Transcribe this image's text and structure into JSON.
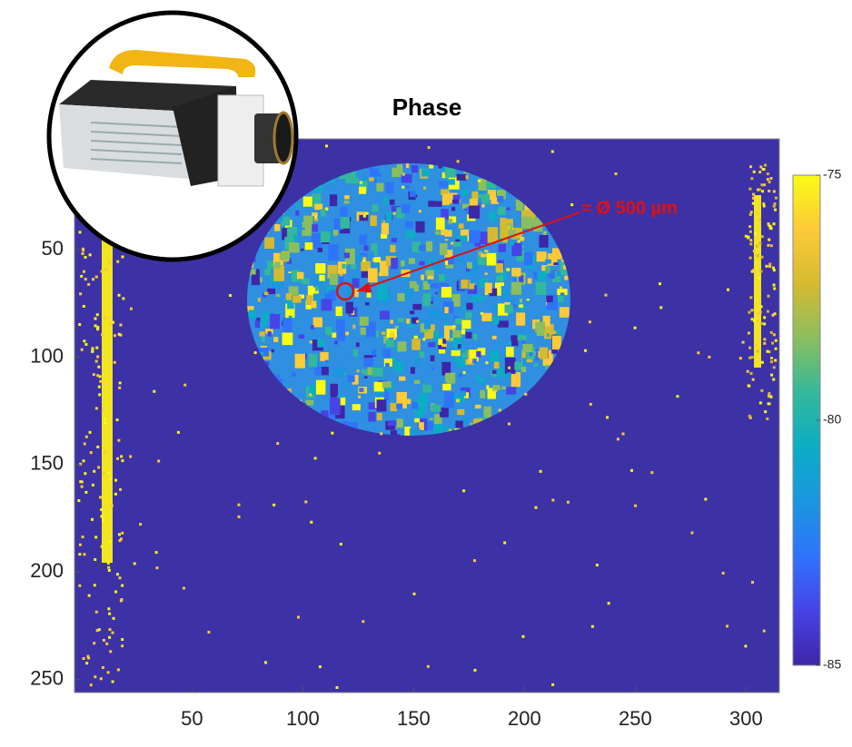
{
  "chart_data": {
    "type": "image",
    "title": "Phase",
    "xlim": [
      -3,
      315
    ],
    "xticks": [
      50,
      100,
      150,
      200,
      250,
      300
    ],
    "ylim": [
      -1.5,
      256
    ],
    "yticks": [
      50,
      100,
      150,
      200,
      250
    ],
    "y_reversed": true,
    "background_color": "#3d31a6",
    "colorbar": {
      "clim": [
        -85,
        -75
      ],
      "ticks": [
        -75,
        -80,
        -85
      ],
      "colormap": [
        "#3e26a8",
        "#4743e6",
        "#2f73fb",
        "#1b96df",
        "#0cadc5",
        "#33b89b",
        "#8bbe5f",
        "#d5ba30",
        "#fdca38",
        "#f9fb15"
      ]
    },
    "annotation": "≈ Ø 500 µm"
  }
}
